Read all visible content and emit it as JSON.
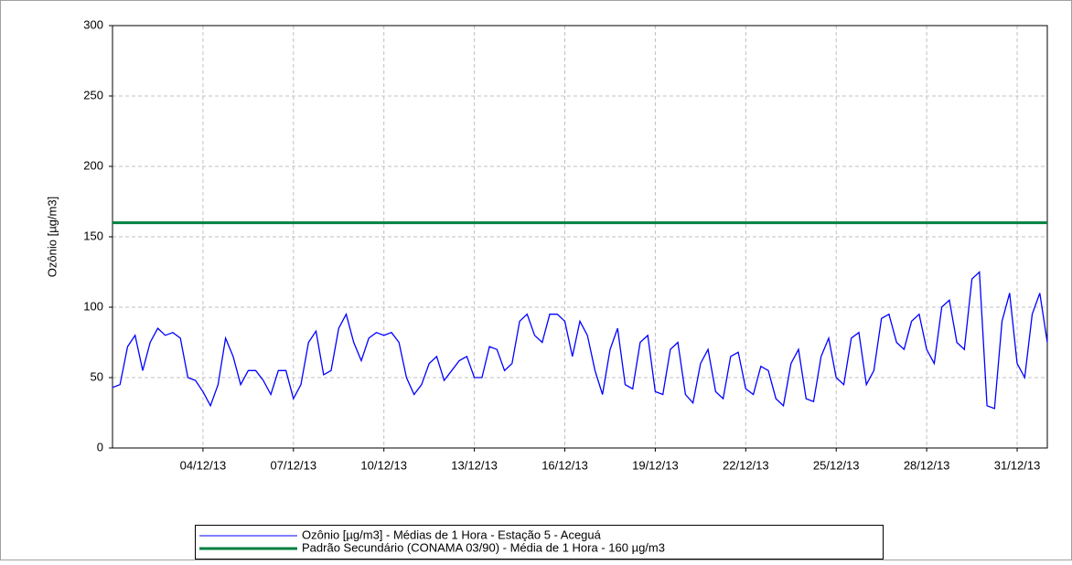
{
  "chart_data": {
    "type": "line",
    "ylabel": "Ozônio [µg/m3]",
    "xlim": [
      "2013-12-01T00:00",
      "2014-01-01T00:00"
    ],
    "xticks": [
      {
        "value": "2013-12-04T00:00",
        "label": "04/12/13"
      },
      {
        "value": "2013-12-07T00:00",
        "label": "07/12/13"
      },
      {
        "value": "2013-12-10T00:00",
        "label": "10/12/13"
      },
      {
        "value": "2013-12-13T00:00",
        "label": "13/12/13"
      },
      {
        "value": "2013-12-16T00:00",
        "label": "16/12/13"
      },
      {
        "value": "2013-12-19T00:00",
        "label": "19/12/13"
      },
      {
        "value": "2013-12-22T00:00",
        "label": "22/12/13"
      },
      {
        "value": "2013-12-25T00:00",
        "label": "25/12/13"
      },
      {
        "value": "2013-12-28T00:00",
        "label": "28/12/13"
      },
      {
        "value": "2013-12-31T00:00",
        "label": "31/12/13"
      }
    ],
    "ylim": [
      0,
      300
    ],
    "yticks": [
      0,
      50,
      100,
      150,
      200,
      250,
      300
    ],
    "grid": true,
    "series": [
      {
        "name": "Ozônio [µg/m3] - Médias de 1 Hora - Estação 5 - Aceguá",
        "color": "#0000ff",
        "x": [
          "2013-12-01T00:00",
          "2013-12-01T06:00",
          "2013-12-01T12:00",
          "2013-12-01T18:00",
          "2013-12-02T00:00",
          "2013-12-02T06:00",
          "2013-12-02T12:00",
          "2013-12-02T18:00",
          "2013-12-03T00:00",
          "2013-12-03T06:00",
          "2013-12-03T12:00",
          "2013-12-03T18:00",
          "2013-12-04T00:00",
          "2013-12-04T06:00",
          "2013-12-04T12:00",
          "2013-12-04T18:00",
          "2013-12-05T00:00",
          "2013-12-05T06:00",
          "2013-12-05T12:00",
          "2013-12-05T18:00",
          "2013-12-06T00:00",
          "2013-12-06T06:00",
          "2013-12-06T12:00",
          "2013-12-06T18:00",
          "2013-12-07T00:00",
          "2013-12-07T06:00",
          "2013-12-07T12:00",
          "2013-12-07T18:00",
          "2013-12-08T00:00",
          "2013-12-08T06:00",
          "2013-12-08T12:00",
          "2013-12-08T18:00",
          "2013-12-09T00:00",
          "2013-12-09T06:00",
          "2013-12-09T12:00",
          "2013-12-09T18:00",
          "2013-12-10T00:00",
          "2013-12-10T06:00",
          "2013-12-10T12:00",
          "2013-12-10T18:00",
          "2013-12-11T00:00",
          "2013-12-11T06:00",
          "2013-12-11T12:00",
          "2013-12-11T18:00",
          "2013-12-12T00:00",
          "2013-12-12T06:00",
          "2013-12-12T12:00",
          "2013-12-12T18:00",
          "2013-12-13T00:00",
          "2013-12-13T06:00",
          "2013-12-13T12:00",
          "2013-12-13T18:00",
          "2013-12-14T00:00",
          "2013-12-14T06:00",
          "2013-12-14T12:00",
          "2013-12-14T18:00",
          "2013-12-15T00:00",
          "2013-12-15T06:00",
          "2013-12-15T12:00",
          "2013-12-15T18:00",
          "2013-12-16T00:00",
          "2013-12-16T06:00",
          "2013-12-16T12:00",
          "2013-12-16T18:00",
          "2013-12-17T00:00",
          "2013-12-17T06:00",
          "2013-12-17T12:00",
          "2013-12-17T18:00",
          "2013-12-18T00:00",
          "2013-12-18T06:00",
          "2013-12-18T12:00",
          "2013-12-18T18:00",
          "2013-12-19T00:00",
          "2013-12-19T06:00",
          "2013-12-19T12:00",
          "2013-12-19T18:00",
          "2013-12-20T00:00",
          "2013-12-20T06:00",
          "2013-12-20T12:00",
          "2013-12-20T18:00",
          "2013-12-21T00:00",
          "2013-12-21T06:00",
          "2013-12-21T12:00",
          "2013-12-21T18:00",
          "2013-12-22T00:00",
          "2013-12-22T06:00",
          "2013-12-22T12:00",
          "2013-12-22T18:00",
          "2013-12-23T00:00",
          "2013-12-23T06:00",
          "2013-12-23T12:00",
          "2013-12-23T18:00",
          "2013-12-24T00:00",
          "2013-12-24T06:00",
          "2013-12-24T12:00",
          "2013-12-24T18:00",
          "2013-12-25T00:00",
          "2013-12-25T06:00",
          "2013-12-25T12:00",
          "2013-12-25T18:00",
          "2013-12-26T00:00",
          "2013-12-26T06:00",
          "2013-12-26T12:00",
          "2013-12-26T18:00",
          "2013-12-27T00:00",
          "2013-12-27T06:00",
          "2013-12-27T12:00",
          "2013-12-27T18:00",
          "2013-12-28T00:00",
          "2013-12-28T06:00",
          "2013-12-28T12:00",
          "2013-12-28T18:00",
          "2013-12-29T00:00",
          "2013-12-29T06:00",
          "2013-12-29T12:00",
          "2013-12-29T18:00",
          "2013-12-30T00:00",
          "2013-12-30T06:00",
          "2013-12-30T12:00",
          "2013-12-30T18:00",
          "2013-12-31T00:00",
          "2013-12-31T06:00",
          "2013-12-31T12:00",
          "2013-12-31T18:00",
          "2014-01-01T00:00"
        ],
        "values": [
          43,
          45,
          72,
          80,
          55,
          75,
          85,
          80,
          82,
          78,
          50,
          48,
          40,
          30,
          45,
          78,
          65,
          45,
          55,
          55,
          48,
          38,
          55,
          55,
          35,
          45,
          75,
          83,
          52,
          55,
          85,
          95,
          75,
          62,
          78,
          82,
          80,
          82,
          75,
          50,
          38,
          45,
          60,
          65,
          48,
          55,
          62,
          65,
          50,
          50,
          72,
          70,
          55,
          60,
          90,
          95,
          80,
          75,
          95,
          95,
          90,
          65,
          90,
          80,
          55,
          38,
          70,
          85,
          45,
          42,
          75,
          80,
          40,
          38,
          70,
          75,
          38,
          32,
          60,
          70,
          40,
          35,
          65,
          68,
          42,
          38,
          58,
          55,
          35,
          30,
          60,
          70,
          35,
          33,
          65,
          78,
          50,
          45,
          78,
          82,
          45,
          55,
          92,
          95,
          75,
          70,
          90,
          95,
          70,
          60,
          100,
          105,
          75,
          70,
          120,
          125,
          30,
          28,
          90,
          110,
          60,
          50,
          95,
          110,
          75
        ]
      },
      {
        "name": "Padrão Secundário (CONAMA 03/90) - Média de 1 Hora - 160 µg/m3",
        "color": "#008040",
        "x": [
          "2013-12-01T00:00",
          "2014-01-01T00:00"
        ],
        "values": [
          160,
          160
        ]
      }
    ]
  }
}
